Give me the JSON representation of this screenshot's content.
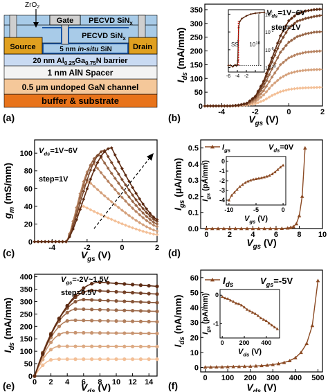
{
  "panel_letters": [
    "(a)",
    "(b)",
    "(c)",
    "(d)",
    "(e)",
    "(f)"
  ],
  "colors": {
    "dark": "#5c2a12",
    "mid": "#8b4a23",
    "light": "#f3bf96",
    "source_drain": "#e0a020",
    "sin": "#a8cbe8",
    "dark_blue": "#1a56a6",
    "barrier": "#c9daf2",
    "spacer": "#f3f3f3",
    "channel": "#f5c89a",
    "substrate": "#e8731a",
    "gate": "#cfcfcf"
  },
  "device": {
    "zro2": "ZrO",
    "zro2_sub": "2",
    "gate": "Gate",
    "pecvd_top": "PECVD SiN",
    "pecvd_mid": "PECVD SiN",
    "x_sub": "x",
    "source": "Source",
    "drain": "Drain",
    "insitu": "5 nm ",
    "insitu_it": "in-situ",
    "insitu_end": " SiN",
    "barrier_pre": "20 nm Al",
    "barrier_s1": "0.25",
    "barrier_mid": "Ga",
    "barrier_s2": "0.75",
    "barrier_end": "N barrier",
    "spacer": "1 nm AlN Spacer",
    "channel": "0.5 μm undoped GaN channel",
    "substrate": "buffer & substrate"
  },
  "chart_data": [
    {
      "panel": "(b)",
      "type": "line",
      "xlabel": "V",
      "xlabel_sub": "gs",
      "xlabel_unit": " (V)",
      "ylabel": "I",
      "ylabel_sub": "ds",
      "ylabel_unit": " (mA/mm)",
      "xlim": [
        -5,
        2
      ],
      "ylim": [
        0,
        370
      ],
      "xticks": [
        -4,
        -2,
        0,
        2
      ],
      "yticks": [
        0,
        50,
        100,
        150,
        200,
        250,
        300,
        350
      ],
      "annotation_1": "V",
      "annotation_1_sub": "ds",
      "annotation_1_val": "=1V~6V",
      "annotation_2": "step=1V",
      "x": [
        -5,
        -4.5,
        -4,
        -3.5,
        -3,
        -2.5,
        -2,
        -1.5,
        -1,
        -0.5,
        0,
        0.5,
        1,
        1.5,
        2
      ],
      "series": [
        {
          "values": [
            0,
            0,
            0,
            0,
            1,
            3,
            8,
            20,
            38,
            52,
            60,
            64,
            66,
            67,
            68
          ]
        },
        {
          "values": [
            0,
            0,
            0,
            0,
            1,
            5,
            15,
            40,
            75,
            102,
            118,
            126,
            130,
            132,
            133
          ]
        },
        {
          "values": [
            0,
            0,
            0,
            0,
            2,
            7,
            22,
            55,
            105,
            150,
            175,
            188,
            195,
            198,
            200
          ]
        },
        {
          "values": [
            0,
            0,
            0,
            0,
            2,
            8,
            28,
            70,
            135,
            195,
            232,
            252,
            262,
            268,
            270
          ]
        },
        {
          "values": [
            0,
            0,
            0,
            0,
            2,
            9,
            32,
            82,
            160,
            233,
            283,
            308,
            318,
            325,
            330
          ]
        },
        {
          "values": [
            0,
            0,
            0,
            0,
            3,
            10,
            35,
            90,
            175,
            255,
            310,
            335,
            345,
            350,
            352
          ]
        }
      ],
      "inset": {
        "label": "SS",
        "ratio": "10",
        "ratio_sup": "10",
        "xlim": [
          -6,
          2
        ],
        "xticks": [
          -6,
          -4,
          -2,
          0,
          2
        ],
        "yticks": [
          {
            "base": "10",
            "exp": "-10",
            "v": -10
          },
          {
            "base": "10",
            "exp": "-6",
            "v": -6
          },
          {
            "base": "10",
            "exp": "-2",
            "v": -2
          },
          {
            "base": "10",
            "exp": "2",
            "v": 2
          }
        ],
        "x": [
          -6,
          -5.5,
          -5,
          -4.5,
          -4.2,
          -4,
          -3.9,
          -3.8,
          -3.7,
          -3.5,
          -3,
          -2,
          -1,
          0,
          1,
          2
        ],
        "log_values": [
          -9.5,
          -9.5,
          -9.8,
          -9.4,
          -9.6,
          -9.3,
          -8.5,
          -4,
          -1,
          0.3,
          1.0,
          1.6,
          2.0,
          2.2,
          2.3,
          2.4
        ]
      }
    },
    {
      "panel": "(c)",
      "type": "line",
      "xlabel": "V",
      "xlabel_sub": "gs",
      "xlabel_unit": " (V)",
      "ylabel": "g",
      "ylabel_sub": "m",
      "ylabel_unit": " (mS/mm)",
      "xlim": [
        -5,
        2
      ],
      "ylim": [
        0,
        115
      ],
      "xticks": [
        -4,
        -2,
        0,
        2
      ],
      "yticks": [
        0,
        20,
        40,
        60,
        80,
        100
      ],
      "annotation_1": "V",
      "annotation_1_sub": "ds",
      "annotation_1_val": "=1V~6V",
      "annotation_2": "step=1V",
      "series": [
        {
          "peak_x": -2.2,
          "peak": 40,
          "tail": 8
        },
        {
          "peak_x": -1.9,
          "peak": 68,
          "tail": 12
        },
        {
          "peak_x": -1.6,
          "peak": 88,
          "tail": 17
        },
        {
          "peak_x": -1.3,
          "peak": 98,
          "tail": 20
        },
        {
          "peak_x": -1.0,
          "peak": 103,
          "tail": 23
        },
        {
          "peak_x": -0.6,
          "peak": 106,
          "tail": 25
        }
      ]
    },
    {
      "panel": "(d)",
      "type": "line",
      "xlabel": "V",
      "xlabel_sub": "gs",
      "xlabel_unit": " (V)",
      "ylabel": "I",
      "ylabel_sub": "gs",
      "ylabel_unit": " (μA/mm)",
      "legend": "I",
      "legend_sub": "gs",
      "annotation_1": "V",
      "annotation_1_sub": "ds",
      "annotation_1_val": "=0V",
      "xlim": [
        -0.5,
        10
      ],
      "ylim": [
        0,
        0.55
      ],
      "xticks": [
        0,
        2,
        4,
        6,
        8,
        10
      ],
      "yticks": [
        0.0,
        0.1,
        0.2,
        0.3,
        0.4,
        0.5
      ],
      "x": [
        0,
        0.5,
        1,
        1.5,
        2,
        2.5,
        3,
        3.5,
        4,
        4.5,
        5,
        5.5,
        6,
        6.5,
        7,
        7.25,
        7.5,
        7.75,
        8.0,
        8.25,
        8.5
      ],
      "values": [
        0,
        0,
        0,
        0,
        0,
        0,
        0,
        0,
        0,
        0,
        0,
        0,
        0,
        0.001,
        0.003,
        0.006,
        0.012,
        0.03,
        0.08,
        0.2,
        0.5
      ],
      "inset": {
        "ylabel": "I",
        "ylabel_sub": "gs",
        "ylabel_unit": " (pA/mm)",
        "xlabel": "V",
        "xlabel_sub": "gs",
        "xlabel_unit": " (V)",
        "xlim": [
          -10.5,
          0.5
        ],
        "ylim": [
          -4.5,
          0.5
        ],
        "xticks": [
          -10,
          -5,
          0
        ],
        "yticks": [
          -4,
          -3,
          -2,
          -1,
          0
        ],
        "x": [
          -10,
          -9.5,
          -9,
          -8.5,
          -8,
          -7.5,
          -7,
          -6.5,
          -6,
          -5.5,
          -5,
          -4.5,
          -4,
          -3.5,
          -3,
          -2.5,
          -2,
          -1.5,
          -1,
          -0.5,
          0
        ],
        "values": [
          -4.0,
          -3.5,
          -3.2,
          -2.9,
          -2.6,
          -2.4,
          -2.2,
          -2.05,
          -1.95,
          -1.85,
          -1.8,
          -1.75,
          -1.7,
          -1.62,
          -1.55,
          -1.45,
          -1.3,
          -1.1,
          -0.85,
          -0.6,
          -0.4
        ]
      }
    },
    {
      "panel": "(e)",
      "type": "line",
      "xlabel": "V",
      "xlabel_sub": "ds",
      "xlabel_unit": " (V)",
      "ylabel": "I",
      "ylabel_sub": "ds",
      "ylabel_unit": " (mA/mm)",
      "xlim": [
        0,
        15
      ],
      "ylim": [
        0,
        410
      ],
      "xticks": [
        0,
        2,
        4,
        6,
        8,
        10,
        12,
        14
      ],
      "yticks": [
        0,
        50,
        100,
        150,
        200,
        250,
        300,
        350,
        400
      ],
      "annotation_1": "V",
      "annotation_1_sub": "gs",
      "annotation_1_val": "=-2V~1.5V",
      "annotation_2": "step=0.5V",
      "series": [
        {
          "sat": 68,
          "knee": 2.5
        },
        {
          "sat": 120,
          "knee": 3.0
        },
        {
          "sat": 175,
          "knee": 3.8
        },
        {
          "sat": 225,
          "knee": 4.5
        },
        {
          "sat": 270,
          "knee": 5.2
        },
        {
          "sat": 308,
          "knee": 6.0
        },
        {
          "sat": 345,
          "knee": 7.0
        },
        {
          "sat": 378,
          "knee": 8.0
        }
      ]
    },
    {
      "panel": "(f)",
      "type": "line",
      "xlabel": "V",
      "xlabel_sub": "ds",
      "xlabel_unit": " (V)",
      "ylabel": "I",
      "ylabel_sub": "ds",
      "ylabel_unit": " (nA/mm)",
      "legend": "I",
      "legend_sub": "ds",
      "annotation_1": "V",
      "annotation_1_sub": "gs",
      "annotation_1_val": "=-5V",
      "xlim": [
        -20,
        520
      ],
      "ylim": [
        -3,
        65
      ],
      "xticks": [
        0,
        100,
        200,
        300,
        400,
        500
      ],
      "yticks": [
        0,
        10,
        20,
        30,
        40,
        50,
        60
      ],
      "x": [
        0,
        25,
        50,
        75,
        100,
        125,
        150,
        175,
        200,
        225,
        250,
        275,
        300,
        325,
        350,
        375,
        400,
        425,
        450,
        475,
        500
      ],
      "values": [
        0.2,
        0.2,
        0.3,
        0.3,
        0.4,
        0.5,
        0.6,
        0.7,
        0.8,
        1.0,
        1.2,
        1.5,
        1.9,
        2.5,
        3.3,
        4.5,
        6.5,
        10,
        16,
        28,
        58
      ],
      "inset": {
        "ylabel": "I",
        "ylabel_sub": "gs",
        "ylabel_unit": " (pA/mm)",
        "xlabel": "V",
        "xlabel_sub": "ds",
        "xlabel_unit": " (V)",
        "xlim": [
          -20,
          520
        ],
        "ylim": [
          -1.5,
          0.2
        ],
        "xticks": [
          0,
          200,
          400
        ],
        "yticks": [
          -1,
          0
        ],
        "x": [
          0,
          25,
          50,
          75,
          100,
          125,
          150,
          175,
          200,
          225,
          250,
          275,
          300,
          325,
          350,
          375,
          400,
          425,
          450,
          475,
          500
        ],
        "values": [
          -0.05,
          -0.1,
          -0.12,
          -0.18,
          -0.22,
          -0.28,
          -0.3,
          -0.35,
          -0.42,
          -0.5,
          -0.55,
          -0.6,
          -0.65,
          -0.72,
          -0.8,
          -0.85,
          -0.9,
          -0.98,
          -1.05,
          -1.12,
          -1.18
        ]
      }
    }
  ]
}
